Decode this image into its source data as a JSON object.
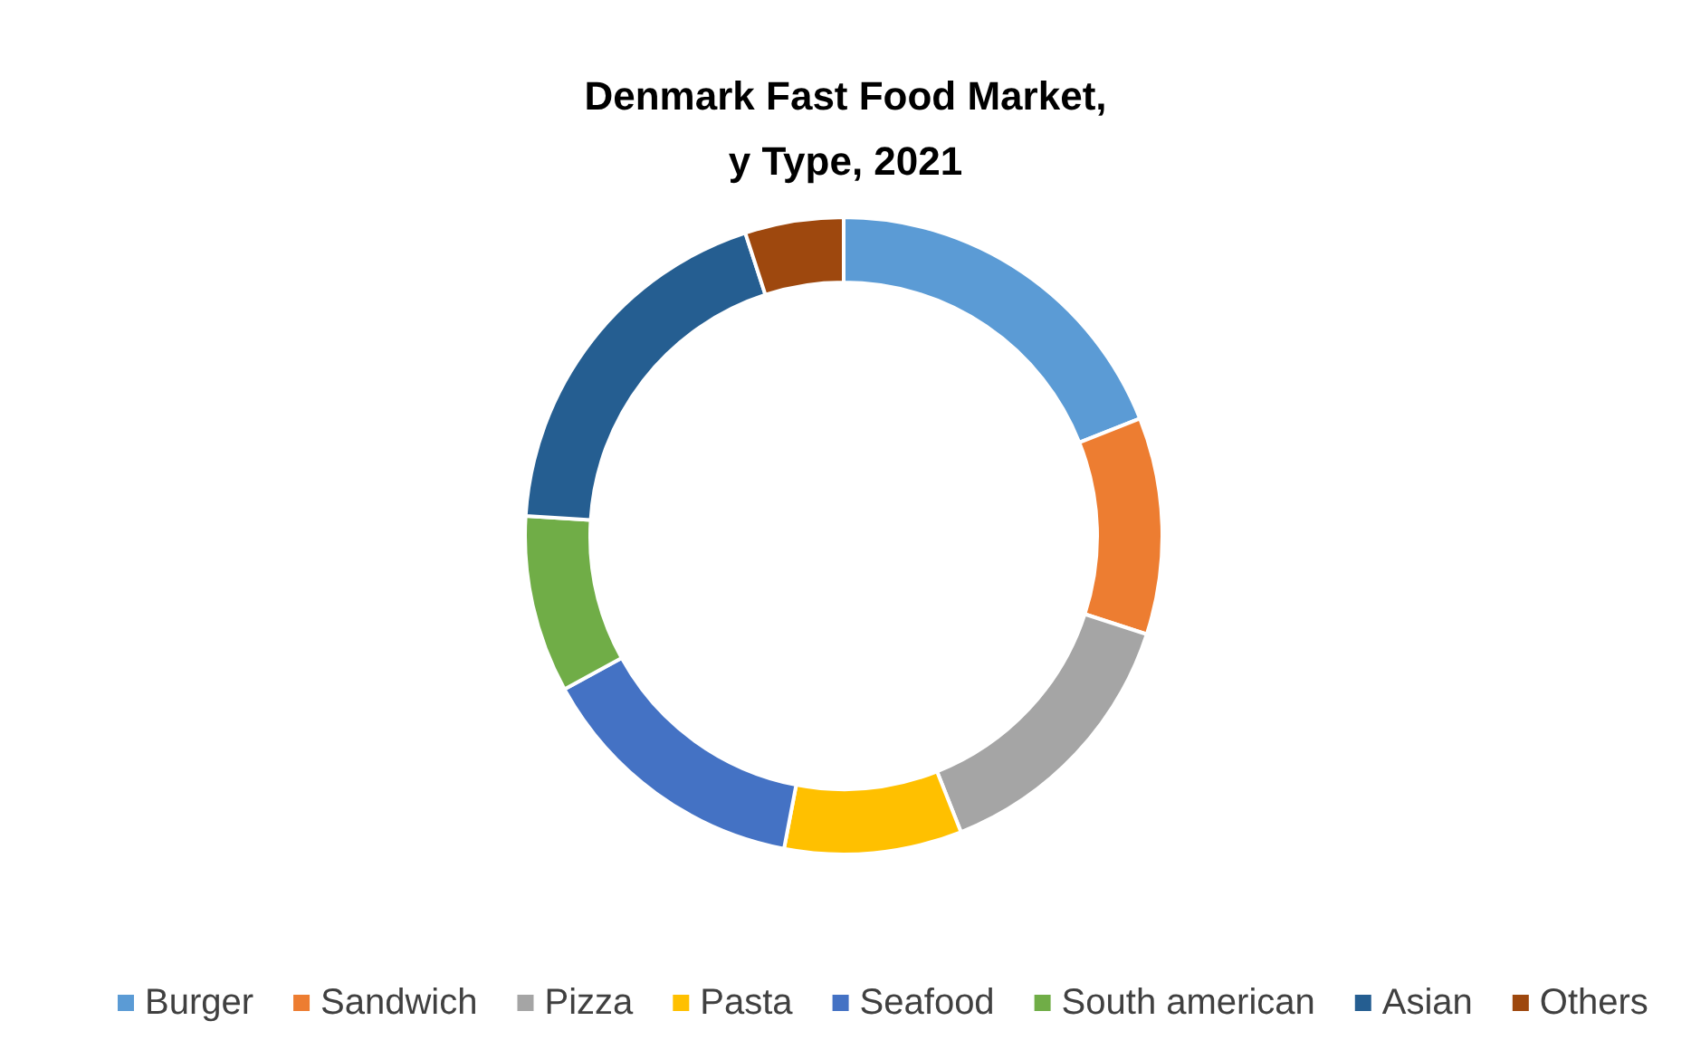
{
  "chart_data": {
    "type": "donut",
    "title": "Denmark Fast Food Market,\ny Type, 2021",
    "categories": [
      "Burger",
      "Sandwich",
      "Pizza",
      "Pasta",
      "Seafood",
      "South american",
      "Asian",
      "Others"
    ],
    "values": [
      19,
      11,
      14,
      9,
      14,
      9,
      19,
      5
    ],
    "colors": [
      "#5b9bd5",
      "#ed7d31",
      "#a5a5a5",
      "#ffc000",
      "#4472c4",
      "#70ad47",
      "#255e91",
      "#9e480e"
    ],
    "legend": "bottom"
  }
}
